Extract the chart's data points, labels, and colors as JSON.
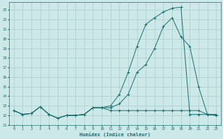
{
  "xlabel": "Humidex (Indice chaleur)",
  "xlim": [
    -0.5,
    23.5
  ],
  "ylim": [
    11.0,
    23.8
  ],
  "yticks": [
    11,
    12,
    13,
    14,
    15,
    16,
    17,
    18,
    19,
    20,
    21,
    22,
    23
  ],
  "xticks": [
    0,
    1,
    2,
    3,
    4,
    5,
    6,
    7,
    8,
    9,
    10,
    11,
    12,
    13,
    14,
    15,
    16,
    17,
    18,
    19,
    20,
    21,
    22,
    23
  ],
  "bg_color": "#cce8e8",
  "grid_color": "#aacccc",
  "line_color": "#1a6e6e",
  "line1_x": [
    0,
    1,
    2,
    3,
    4,
    5,
    6,
    7,
    8,
    9,
    10,
    11,
    12,
    13,
    14,
    15,
    16,
    17,
    18,
    19,
    20,
    21,
    22,
    23
  ],
  "line1_y": [
    12.5,
    12.1,
    12.2,
    12.9,
    12.1,
    11.7,
    12.0,
    12.0,
    12.1,
    12.8,
    12.8,
    12.5,
    12.5,
    12.5,
    12.5,
    12.5,
    12.5,
    12.5,
    12.5,
    12.5,
    12.5,
    12.5,
    12.1,
    12.0
  ],
  "line2_x": [
    0,
    1,
    2,
    3,
    4,
    5,
    6,
    7,
    8,
    9,
    10,
    11,
    12,
    13,
    14,
    15,
    16,
    17,
    18,
    19,
    20,
    21,
    22,
    23
  ],
  "line2_y": [
    12.5,
    12.1,
    12.2,
    12.9,
    12.1,
    11.7,
    12.0,
    12.0,
    12.1,
    12.8,
    12.8,
    12.8,
    13.2,
    14.2,
    16.5,
    17.3,
    19.0,
    21.3,
    22.2,
    20.2,
    19.2,
    15.0,
    12.1,
    12.0
  ],
  "line3_x": [
    0,
    1,
    2,
    3,
    4,
    5,
    6,
    7,
    8,
    9,
    10,
    11,
    12,
    13,
    14,
    15,
    16,
    17,
    18,
    19,
    20,
    21,
    22,
    23
  ],
  "line3_y": [
    12.5,
    12.1,
    12.2,
    12.9,
    12.1,
    11.7,
    12.0,
    12.0,
    12.1,
    12.8,
    12.8,
    13.0,
    14.2,
    16.5,
    19.2,
    21.5,
    22.2,
    22.8,
    23.2,
    23.3,
    12.1,
    12.1,
    12.1,
    12.1
  ]
}
